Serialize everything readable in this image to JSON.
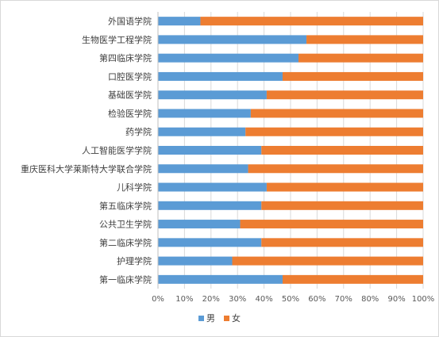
{
  "chart_data": {
    "type": "bar",
    "orientation": "horizontal",
    "stacked": true,
    "percent_stacked": true,
    "categories": [
      "外国语学院",
      "生物医学工程学院",
      "第四临床学院",
      "口腔医学院",
      "基础医学院",
      "检验医学院",
      "药学院",
      "人工智能医学学院",
      "重庆医科大学莱斯特大学联合学院",
      "儿科学院",
      "第五临床学院",
      "公共卫生学院",
      "第二临床学院",
      "护理学院",
      "第一临床学院"
    ],
    "series": [
      {
        "name": "男",
        "color": "#5b9bd5",
        "values": [
          16,
          56,
          53,
          47,
          41,
          35,
          33,
          39,
          34,
          41,
          39,
          31,
          39,
          28,
          47
        ]
      },
      {
        "name": "女",
        "color": "#ed7d31",
        "values": [
          84,
          44,
          47,
          53,
          59,
          65,
          67,
          61,
          66,
          59,
          61,
          69,
          61,
          72,
          53
        ]
      }
    ],
    "x_ticks": [
      "0%",
      "10%",
      "20%",
      "30%",
      "40%",
      "50%",
      "60%",
      "70%",
      "80%",
      "90%",
      "100%"
    ],
    "xlim": [
      0,
      100
    ],
    "legend_position": "bottom",
    "grid": true
  }
}
